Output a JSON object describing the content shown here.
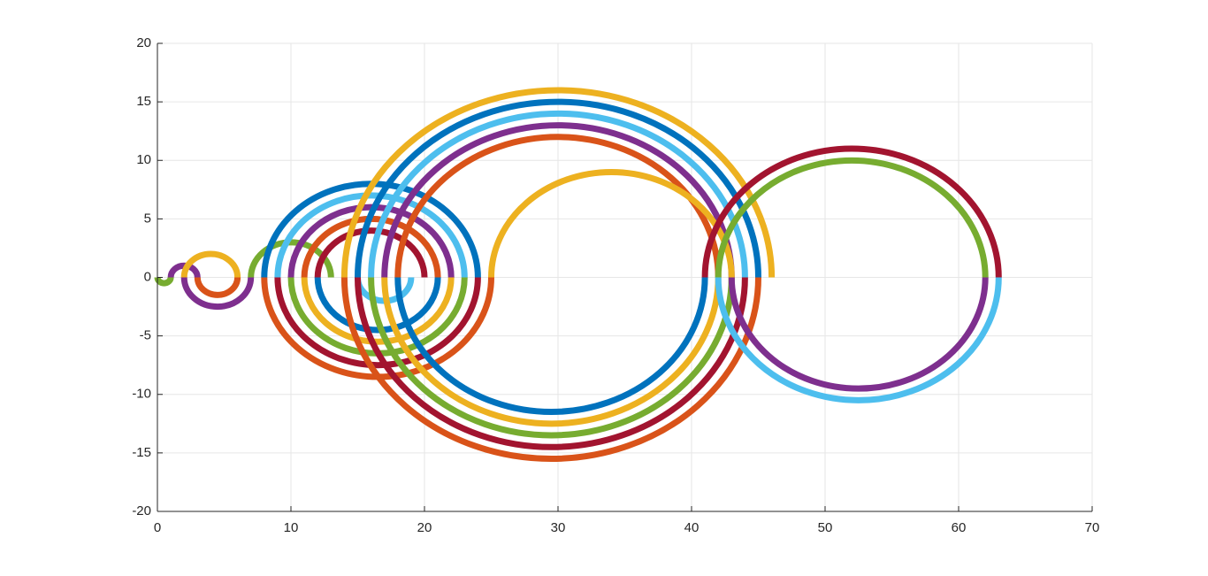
{
  "chart_data": {
    "type": "semicircles",
    "xlim": [
      0,
      70
    ],
    "xticks": [
      0,
      10,
      20,
      30,
      40,
      50,
      60,
      70
    ],
    "ylim": [
      -20,
      20
    ],
    "yticks": [
      -20,
      -15,
      -10,
      -5,
      0,
      5,
      10,
      15,
      20
    ],
    "grid": true,
    "series": [
      {
        "color": "#77AC30",
        "half": "lower",
        "x": [
          0,
          1
        ]
      },
      {
        "color": "#7E2F8E",
        "half": "upper",
        "x": [
          1,
          3
        ]
      },
      {
        "color": "#EDB120",
        "half": "upper",
        "x": [
          2,
          6
        ]
      },
      {
        "color": "#D95319",
        "half": "lower",
        "x": [
          3,
          6
        ]
      },
      {
        "color": "#7E2F8E",
        "half": "lower",
        "x": [
          2,
          7
        ]
      },
      {
        "color": "#77AC30",
        "half": "upper",
        "x": [
          7,
          13
        ]
      },
      {
        "color": "#0072BD",
        "half": "upper",
        "x": [
          8,
          24
        ]
      },
      {
        "color": "#4DBEEE",
        "half": "upper",
        "x": [
          9,
          23
        ]
      },
      {
        "color": "#7E2F8E",
        "half": "upper",
        "x": [
          10,
          22
        ]
      },
      {
        "color": "#D95319",
        "half": "upper",
        "x": [
          11,
          21
        ]
      },
      {
        "color": "#A2142F",
        "half": "upper",
        "x": [
          12,
          20
        ]
      },
      {
        "color": "#D95319",
        "half": "lower",
        "x": [
          8,
          25
        ]
      },
      {
        "color": "#A2142F",
        "half": "lower",
        "x": [
          9,
          24
        ]
      },
      {
        "color": "#77AC30",
        "half": "lower",
        "x": [
          10,
          23
        ]
      },
      {
        "color": "#EDB120",
        "half": "lower",
        "x": [
          11,
          22
        ]
      },
      {
        "color": "#0072BD",
        "half": "lower",
        "x": [
          12,
          21
        ]
      },
      {
        "color": "#4DBEEE",
        "half": "lower",
        "x": [
          15,
          19
        ]
      },
      {
        "color": "#EDB120",
        "half": "upper",
        "x": [
          14,
          46
        ]
      },
      {
        "color": "#0072BD",
        "half": "upper",
        "x": [
          15,
          45
        ]
      },
      {
        "color": "#4DBEEE",
        "half": "upper",
        "x": [
          16,
          44
        ]
      },
      {
        "color": "#7E2F8E",
        "half": "upper",
        "x": [
          17,
          43
        ]
      },
      {
        "color": "#D95319",
        "half": "upper",
        "x": [
          18,
          42
        ]
      },
      {
        "color": "#EDB120",
        "half": "upper",
        "x": [
          25,
          43
        ]
      },
      {
        "color": "#D95319",
        "half": "lower",
        "x": [
          14,
          45
        ]
      },
      {
        "color": "#A2142F",
        "half": "lower",
        "x": [
          15,
          44
        ]
      },
      {
        "color": "#77AC30",
        "half": "lower",
        "x": [
          16,
          43
        ]
      },
      {
        "color": "#EDB120",
        "half": "lower",
        "x": [
          17,
          42
        ]
      },
      {
        "color": "#0072BD",
        "half": "lower",
        "x": [
          18,
          41
        ]
      },
      {
        "color": "#A2142F",
        "half": "upper",
        "x": [
          41,
          63
        ]
      },
      {
        "color": "#77AC30",
        "half": "upper",
        "x": [
          42,
          62
        ]
      },
      {
        "color": "#4DBEEE",
        "half": "lower",
        "x": [
          42,
          63
        ]
      },
      {
        "color": "#7E2F8E",
        "half": "lower",
        "x": [
          43,
          62
        ]
      }
    ]
  }
}
